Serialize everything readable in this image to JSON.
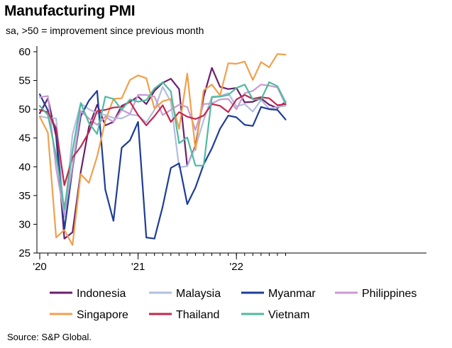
{
  "title": "Manufacturing PMI",
  "subtitle": "sa, >50 = improvement since previous month",
  "source": "Source: S&P Global.",
  "chart_data": {
    "type": "line",
    "x": [
      "2020-01",
      "2020-02",
      "2020-03",
      "2020-04",
      "2020-05",
      "2020-06",
      "2020-07",
      "2020-08",
      "2020-09",
      "2020-10",
      "2020-11",
      "2020-12",
      "2021-01",
      "2021-02",
      "2021-03",
      "2021-04",
      "2021-05",
      "2021-06",
      "2021-07",
      "2021-08",
      "2021-09",
      "2021-10",
      "2021-11",
      "2021-12",
      "2022-01",
      "2022-02",
      "2022-03",
      "2022-04",
      "2022-05",
      "2022-06",
      "2022-07"
    ],
    "x_tick_labels": [
      {
        "x": "2020-01",
        "label": "'20"
      },
      {
        "x": "2021-01",
        "label": "'21"
      },
      {
        "x": "2022-01",
        "label": "'22"
      }
    ],
    "ylim": [
      25,
      60
    ],
    "y_ticks": [
      25,
      30,
      35,
      40,
      45,
      50,
      55,
      60
    ],
    "grid": false,
    "legend_position": "bottom",
    "series": [
      {
        "name": "Indonesia",
        "color": "#6a1f6e",
        "values": [
          49.3,
          51.9,
          45.3,
          27.5,
          28.6,
          39.1,
          46.9,
          50.8,
          47.2,
          47.8,
          50.6,
          51.3,
          52.2,
          50.9,
          53.2,
          54.6,
          55.3,
          53.5,
          40.1,
          43.7,
          52.2,
          57.2,
          53.9,
          53.5,
          53.7,
          51.2,
          51.3,
          51.9,
          50.8,
          50.2,
          51.3
        ]
      },
      {
        "name": "Malaysia",
        "color": "#b3bedf",
        "values": [
          48.8,
          48.5,
          48.4,
          31.3,
          45.6,
          51.0,
          50.0,
          49.3,
          49.0,
          48.5,
          48.4,
          49.1,
          48.9,
          47.7,
          49.9,
          53.9,
          51.3,
          39.9,
          40.1,
          43.4,
          48.1,
          52.2,
          52.3,
          52.8,
          50.5,
          50.9,
          49.6,
          51.6,
          50.1,
          50.4,
          50.6
        ]
      },
      {
        "name": "Myanmar",
        "color": "#1f3d96",
        "values": [
          52.6,
          49.8,
          46.2,
          29.0,
          39.7,
          48.8,
          51.5,
          53.2,
          36.0,
          30.6,
          43.3,
          44.6,
          47.8,
          27.7,
          27.5,
          33.1,
          39.8,
          40.6,
          33.5,
          36.4,
          40.4,
          43.2,
          46.6,
          48.9,
          48.6,
          47.3,
          47.1,
          50.4,
          50.0,
          49.9,
          48.2
        ]
      },
      {
        "name": "Philippines",
        "color": "#c89ad2",
        "values": [
          52.1,
          52.3,
          39.7,
          31.6,
          40.1,
          49.7,
          48.4,
          47.3,
          48.7,
          47.8,
          49.9,
          49.2,
          52.5,
          52.5,
          52.2,
          49.0,
          49.9,
          50.8,
          50.4,
          46.4,
          50.9,
          51.0,
          51.7,
          51.8,
          50.0,
          52.8,
          53.2,
          54.3,
          54.1,
          53.8,
          50.8
        ]
      },
      {
        "name": "Singapore",
        "color": "#f0a04b",
        "values": [
          48.7,
          45.9,
          27.7,
          29.0,
          26.4,
          38.7,
          37.2,
          41.8,
          48.0,
          51.8,
          51.9,
          55.1,
          55.9,
          55.4,
          50.1,
          51.4,
          51.8,
          46.6,
          56.2,
          42.9,
          53.3,
          54.3,
          52.4,
          58.0,
          57.9,
          58.3,
          55.1,
          58.2,
          57.3,
          59.6,
          59.5
        ]
      },
      {
        "name": "Thailand",
        "color": "#c0284f",
        "values": [
          49.9,
          49.5,
          46.7,
          36.8,
          41.6,
          43.5,
          46.0,
          49.7,
          49.9,
          50.3,
          50.4,
          51.3,
          49.0,
          47.2,
          48.8,
          50.7,
          47.8,
          49.5,
          48.7,
          48.3,
          48.9,
          50.9,
          50.6,
          49.5,
          51.7,
          52.5,
          51.8,
          52.1,
          51.9,
          50.7,
          50.9
        ]
      },
      {
        "name": "Vietnam",
        "color": "#4fbaa0",
        "values": [
          50.6,
          49.0,
          41.9,
          32.7,
          42.7,
          51.1,
          47.6,
          45.7,
          52.2,
          51.8,
          49.9,
          51.7,
          51.3,
          51.6,
          53.6,
          54.7,
          53.1,
          44.1,
          45.1,
          40.2,
          40.2,
          52.1,
          52.2,
          52.5,
          53.7,
          54.3,
          51.7,
          51.7,
          54.7,
          54.0,
          51.2
        ]
      }
    ]
  }
}
